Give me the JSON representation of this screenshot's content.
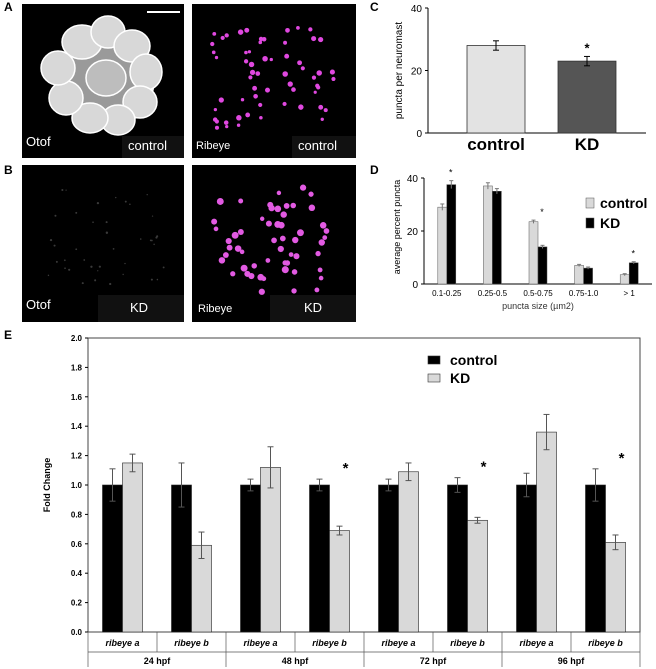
{
  "panels": {
    "A": {
      "letter": "A",
      "left_label": "Otof",
      "left_condition": "control",
      "right_label": "Ribeye",
      "right_condition": "control"
    },
    "B": {
      "letter": "B",
      "left_label": "Otof",
      "left_condition": "KD",
      "right_label": "Ribeye",
      "right_condition": "KD"
    },
    "C": {
      "letter": "C"
    },
    "D": {
      "letter": "D"
    },
    "E": {
      "letter": "E"
    }
  },
  "chart_data": [
    {
      "id": "C",
      "type": "bar",
      "categories": [
        "control",
        "KD"
      ],
      "values": [
        28,
        23
      ],
      "errors": [
        1.5,
        1.5
      ],
      "colors": [
        "#e3e3e3",
        "#555555"
      ],
      "significance": [
        "",
        "*"
      ],
      "ylabel": "puncta per neuromast",
      "ylim": [
        0,
        40
      ],
      "yticks": [
        "0",
        "20",
        "40"
      ]
    },
    {
      "id": "D",
      "type": "bar",
      "categories": [
        "0.1-0.25",
        "0.25-0.5",
        "0.5-0.75",
        "0.75-1.0",
        "> 1"
      ],
      "series": [
        {
          "name": "control",
          "color": "#d9d9d9",
          "values": [
            29,
            37,
            23.5,
            7,
            3.5
          ],
          "errors": [
            1.2,
            1.2,
            0.6,
            0.4,
            0.4
          ]
        },
        {
          "name": "KD",
          "color": "#000000",
          "values": [
            37.5,
            35,
            14,
            6,
            8
          ],
          "errors": [
            1.5,
            1,
            0.6,
            0.4,
            0.4
          ]
        }
      ],
      "significance": [
        "*",
        "",
        "*",
        "",
        "*"
      ],
      "xlabel": "puncta size (µm2)",
      "ylabel": "average percent puncta",
      "ylim": [
        0,
        40
      ],
      "yticks": [
        "0",
        "20",
        "40"
      ],
      "legend_position": "top-right"
    },
    {
      "id": "E",
      "type": "bar",
      "categories": [
        "ribeye a",
        "ribeye b",
        "ribeye a",
        "ribeye b",
        "ribeye a",
        "ribeye b",
        "ribeye a",
        "ribeye b"
      ],
      "groups": [
        "24 hpf",
        "48 hpf",
        "72 hpf",
        "96 hpf"
      ],
      "series": [
        {
          "name": "control",
          "color": "#000000",
          "values": [
            1.0,
            1.0,
            1.0,
            1.0,
            1.0,
            1.0,
            1.0,
            1.0
          ],
          "errors": [
            0.11,
            0.15,
            0.04,
            0.04,
            0.04,
            0.05,
            0.08,
            0.11
          ]
        },
        {
          "name": "KD",
          "color": "#d9d9d9",
          "values": [
            1.15,
            0.59,
            1.12,
            0.69,
            1.09,
            0.76,
            1.36,
            0.61
          ],
          "errors": [
            0.06,
            0.09,
            0.14,
            0.03,
            0.06,
            0.02,
            0.12,
            0.05
          ]
        }
      ],
      "significance": [
        "",
        "",
        "",
        "*",
        "",
        "*",
        "",
        "*"
      ],
      "ylabel": "Fold Change",
      "ylim": [
        0,
        2.0
      ],
      "yticks": [
        "0.0",
        "0.2",
        "0.4",
        "0.6",
        "0.8",
        "1.0",
        "1.2",
        "1.4",
        "1.6",
        "1.8",
        "2.0"
      ],
      "legend_position": "top-right"
    }
  ]
}
